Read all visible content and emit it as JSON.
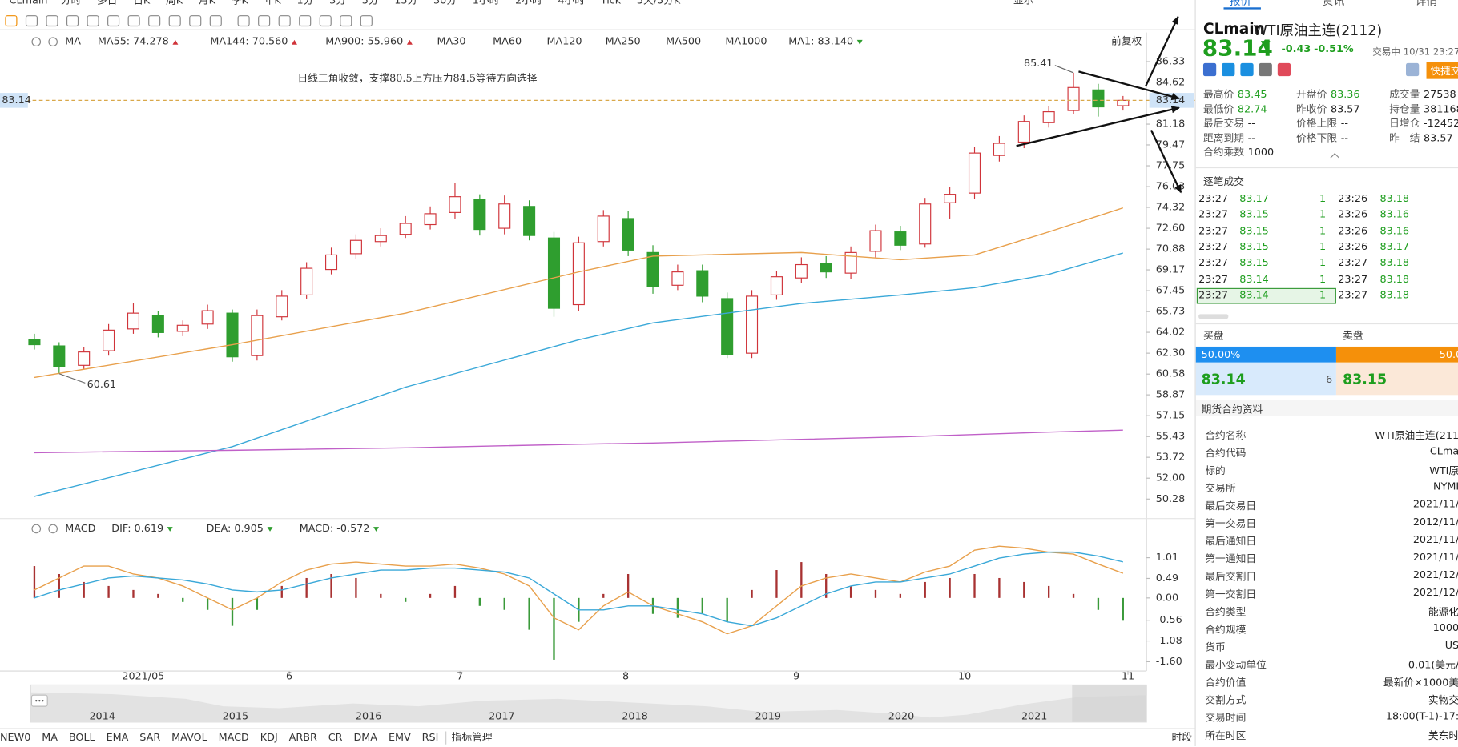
{
  "toolbar": {
    "symbol": "CLmain",
    "active": "日K",
    "display": "显示",
    "periods": [
      "分时",
      "多日",
      "日K",
      "周K",
      "月K",
      "季K",
      "年K",
      "1分",
      "3分",
      "5分",
      "15分",
      "30分",
      "1小时",
      "2小时",
      "4小时",
      "Tick",
      "5天/5分K"
    ]
  },
  "chart_data": [
    {
      "type": "candlestick",
      "title": "MA",
      "adjust": "前复权",
      "annotation": "日线三角收敛，支撑80.5上方压力84.5等待方向选择",
      "xlim": [
        -0.15,
        44.8
      ],
      "ylim": [
        48.9,
        87.2
      ],
      "yticks": [
        86.33,
        84.62,
        81.18,
        79.47,
        77.75,
        76.03,
        74.32,
        {
          "value": 72.6,
          "label": "72.60"
        },
        70.88,
        69.17,
        67.45,
        65.73,
        64.02,
        {
          "value": 62.3,
          "label": "62.30"
        },
        60.58,
        58.87,
        57.15,
        55.43,
        53.72,
        {
          "value": 52,
          "label": "52.00"
        },
        50.28
      ],
      "grid": false,
      "up_color": "#d0343a",
      "down_color": "#2f9e2f",
      "series": {
        "open": [
          63.4,
          62.9,
          61.3,
          62.5,
          64.3,
          65.4,
          64.1,
          64.7,
          65.6,
          62.1,
          65.3,
          67.1,
          69.2,
          70.5,
          71.5,
          72.1,
          72.9,
          73.9,
          75.0,
          72.6,
          74.4,
          71.8,
          66.3,
          71.5,
          73.4,
          70.6,
          67.9,
          69.1,
          66.8,
          62.3,
          67.1,
          68.5,
          69.7,
          68.9,
          70.7,
          72.3,
          71.3,
          74.7,
          75.5,
          78.6,
          79.7,
          81.3,
          82.3,
          84.0,
          82.7
        ],
        "high": [
          63.9,
          63.2,
          62.8,
          64.7,
          66.4,
          65.8,
          65.0,
          66.3,
          65.9,
          65.9,
          67.5,
          69.8,
          71.0,
          72.1,
          72.6,
          73.6,
          74.4,
          76.3,
          75.4,
          75.3,
          74.9,
          72.3,
          71.9,
          74.1,
          74.0,
          71.2,
          69.6,
          69.6,
          67.3,
          67.5,
          69.1,
          70.2,
          70.3,
          71.1,
          72.9,
          72.8,
          75.1,
          76.0,
          79.3,
          80.2,
          81.9,
          82.7,
          85.41,
          84.5,
          83.5
        ],
        "low": [
          62.6,
          60.61,
          61.0,
          62.1,
          63.9,
          63.6,
          63.7,
          64.3,
          61.6,
          61.7,
          65.0,
          66.8,
          68.8,
          70.1,
          71.1,
          71.8,
          72.5,
          73.4,
          72.0,
          72.1,
          71.6,
          65.3,
          65.8,
          71.1,
          70.3,
          67.2,
          67.5,
          66.5,
          61.9,
          61.9,
          66.7,
          68.1,
          68.5,
          68.4,
          70.2,
          70.8,
          71.0,
          73.4,
          75.0,
          78.1,
          79.2,
          80.9,
          82.0,
          81.8,
          82.3
        ],
        "close": [
          63.0,
          61.2,
          62.4,
          64.2,
          65.6,
          64.0,
          64.6,
          65.8,
          62.0,
          65.4,
          67.0,
          69.3,
          70.4,
          71.6,
          72.0,
          73.0,
          73.8,
          75.2,
          72.5,
          74.6,
          72.0,
          66.0,
          71.4,
          73.6,
          70.8,
          67.8,
          69.0,
          67.0,
          62.2,
          67.0,
          68.6,
          69.6,
          69.0,
          70.6,
          72.4,
          71.2,
          74.6,
          75.4,
          78.8,
          79.6,
          81.4,
          82.2,
          84.2,
          82.6,
          83.14
        ]
      },
      "last_price": 83.14,
      "high_label": 85.41,
      "low_label": 60.61,
      "overlays": [
        {
          "legend": "MA55: 74.278",
          "color": "#e8a04c",
          "x": [
            0,
            8,
            15,
            22,
            25,
            31,
            35,
            38,
            41,
            44
          ],
          "values": [
            60.3,
            63.0,
            65.6,
            69.0,
            70.3,
            70.6,
            70.0,
            70.4,
            72.3,
            74.278
          ]
        },
        {
          "legend": "MA144: 70.560",
          "color": "#3aa8d8",
          "x": [
            0,
            8,
            15,
            22,
            25,
            31,
            35,
            38,
            41,
            44
          ],
          "values": [
            50.5,
            54.6,
            59.5,
            63.4,
            64.8,
            66.4,
            67.1,
            67.7,
            68.8,
            70.56
          ]
        },
        {
          "legend": "MA900: 55.960",
          "color": "#c060c8",
          "x": [
            0,
            8,
            15,
            22,
            25,
            31,
            35,
            38,
            41,
            44
          ],
          "values": [
            54.1,
            54.3,
            54.5,
            54.8,
            54.9,
            55.2,
            55.4,
            55.6,
            55.8,
            55.96
          ]
        }
      ],
      "inactive": [
        {
          "legend": "MA30",
          "color": "#b8c8e8"
        },
        {
          "legend": "MA60",
          "color": "#b0d8f0"
        },
        {
          "legend": "MA120",
          "color": "#f0b8c8"
        },
        {
          "legend": "MA250",
          "color": "#b0e4e4"
        },
        {
          "legend": "MA500",
          "color": "#f0d8a8"
        },
        {
          "legend": "MA1000",
          "color": "#c8c8c8"
        }
      ],
      "close_legend": "MA1: 83.140"
    },
    {
      "type": "macd",
      "title": "MACD",
      "xlim": [
        -0.15,
        44.8
      ],
      "ylim": [
        -1.74,
        1.48
      ],
      "yticks": [
        1.01,
        0.49,
        {
          "value": 0,
          "label": "0.00"
        },
        -0.56,
        -1.08,
        {
          "value": -1.6,
          "label": "-1.60"
        }
      ],
      "xticks": [
        {
          "value": 4.4,
          "label": "2021/05"
        },
        {
          "value": 10.3,
          "label": "6"
        },
        {
          "value": 17.2,
          "label": "7"
        },
        {
          "value": 23.9,
          "label": "8"
        },
        {
          "value": 30.8,
          "label": "9"
        },
        {
          "value": 37.6,
          "label": "10"
        },
        {
          "value": 44.2,
          "label": "11"
        }
      ],
      "series": [
        {
          "legend": "DIF: 0.619",
          "color": "#e8a04c",
          "kind": "line",
          "values": [
            0.2,
            0.5,
            0.8,
            0.8,
            0.6,
            0.5,
            0.3,
            0.0,
            -0.3,
            0.0,
            0.4,
            0.7,
            0.85,
            0.9,
            0.85,
            0.8,
            0.8,
            0.85,
            0.75,
            0.6,
            0.3,
            -0.5,
            -0.8,
            -0.2,
            0.15,
            -0.2,
            -0.4,
            -0.6,
            -0.9,
            -0.7,
            -0.2,
            0.3,
            0.5,
            0.6,
            0.5,
            0.4,
            0.65,
            0.8,
            1.2,
            1.3,
            1.25,
            1.15,
            1.1,
            0.85,
            0.619
          ]
        },
        {
          "legend": "DEA: 0.905",
          "color": "#3aa8d8",
          "kind": "line",
          "values": [
            0.0,
            0.2,
            0.35,
            0.5,
            0.55,
            0.5,
            0.45,
            0.35,
            0.2,
            0.15,
            0.2,
            0.35,
            0.5,
            0.6,
            0.7,
            0.7,
            0.75,
            0.75,
            0.7,
            0.65,
            0.5,
            0.1,
            -0.3,
            -0.3,
            -0.2,
            -0.2,
            -0.3,
            -0.4,
            -0.6,
            -0.7,
            -0.5,
            -0.2,
            0.1,
            0.3,
            0.4,
            0.4,
            0.5,
            0.6,
            0.8,
            1.0,
            1.1,
            1.15,
            1.15,
            1.05,
            0.905
          ]
        },
        {
          "legend": "MACD: -0.572",
          "color": "#c060c8",
          "kind": "bar",
          "up_color": "#a83232",
          "down_color": "#3a9a3a",
          "values": [
            0.8,
            0.6,
            0.4,
            0.3,
            0.2,
            0.1,
            -0.1,
            -0.3,
            -0.7,
            -0.3,
            0.3,
            0.5,
            0.6,
            0.5,
            0.1,
            -0.1,
            0.1,
            0.3,
            -0.2,
            -0.3,
            -0.8,
            -1.55,
            -0.6,
            0.1,
            0.6,
            -0.4,
            -0.5,
            -0.4,
            -0.6,
            0.2,
            0.7,
            0.9,
            0.6,
            0.3,
            0.2,
            0.1,
            0.4,
            0.5,
            0.6,
            0.5,
            0.4,
            0.3,
            0.1,
            -0.3,
            -0.572
          ]
        }
      ]
    }
  ],
  "navigator": {
    "years": [
      "2014",
      "2015",
      "2016",
      "2017",
      "2018",
      "2019",
      "2020",
      "2021"
    ]
  },
  "indicator_bar": {
    "items": [
      "NEW0",
      "MA",
      "BOLL",
      "EMA",
      "SAR",
      "MAVOL",
      "MACD",
      "KDJ",
      "ARBR",
      "CR",
      "DMA",
      "EMV",
      "RSI"
    ],
    "active": [
      "MA",
      "MACD"
    ],
    "manage": "指标管理",
    "period": "时段"
  },
  "quote": {
    "tabs": [
      "报价",
      "资讯",
      "详情"
    ],
    "symbol": "CLmain",
    "name": "WTI原油主连(2112)",
    "price": "83.14",
    "change": "-0.43",
    "change_pct": "-0.51%",
    "status": "交易中 10/31 23:27(美",
    "quick": "快捷交",
    "stats": [
      [
        "最高价",
        "83.45"
      ],
      [
        "开盘价",
        "83.36"
      ],
      [
        "成交量",
        "27538"
      ],
      [
        "最低价",
        "82.74"
      ],
      [
        "昨收价",
        "83.57"
      ],
      [
        "持仓量",
        "381168"
      ],
      [
        "最后交易",
        "--"
      ],
      [
        "价格上限",
        "--"
      ],
      [
        "日增仓",
        "-12452"
      ],
      [
        "距离到期",
        "--"
      ],
      [
        "价格下限",
        "--"
      ],
      [
        "昨　结",
        "83.57"
      ],
      [
        "合约乘数",
        "1000"
      ]
    ],
    "trades_title": "逐笔成交",
    "trades": [
      [
        "23:27",
        "83.17",
        "1",
        "23:26",
        "83.18"
      ],
      [
        "23:27",
        "83.15",
        "1",
        "23:26",
        "83.16"
      ],
      [
        "23:27",
        "83.15",
        "1",
        "23:26",
        "83.16"
      ],
      [
        "23:27",
        "83.15",
        "1",
        "23:26",
        "83.17"
      ],
      [
        "23:27",
        "83.15",
        "1",
        "23:27",
        "83.18"
      ],
      [
        "23:27",
        "83.14",
        "1",
        "23:27",
        "83.18"
      ],
      [
        "23:27",
        "83.14",
        "1",
        "23:27",
        "83.18"
      ]
    ],
    "bid_title": "买盘",
    "ask_title": "卖盘",
    "bid_pct": "50.00%",
    "ask_pct": "50.0",
    "bid_price": "83.14",
    "bid_qty": "6",
    "ask_price": "83.15",
    "info_title": "期货合约资料",
    "info": [
      [
        "合约名称",
        "WTI原油主连(211"
      ],
      [
        "合约代码",
        "CLma"
      ],
      [
        "标的",
        "WTI原"
      ],
      [
        "交易所",
        "NYMI"
      ],
      [
        "最后交易日",
        "2021/11/"
      ],
      [
        "第一交易日",
        "2012/11/"
      ],
      [
        "最后通知日",
        "2021/11/"
      ],
      [
        "第一通知日",
        "2021/11/"
      ],
      [
        "最后交割日",
        "2021/12/"
      ],
      [
        "第一交割日",
        "2021/12/"
      ],
      [
        "合约类型",
        "能源化"
      ],
      [
        "合约规模",
        "1000"
      ],
      [
        "货币",
        "US"
      ],
      [
        "最小变动单位",
        "0.01(美元/"
      ],
      [
        "合约价值",
        "最新价×1000美"
      ],
      [
        "交割方式",
        "实物交"
      ],
      [
        "交易时间",
        "18:00(T-1)-17:"
      ],
      [
        "所在时区",
        "美东时"
      ]
    ]
  }
}
